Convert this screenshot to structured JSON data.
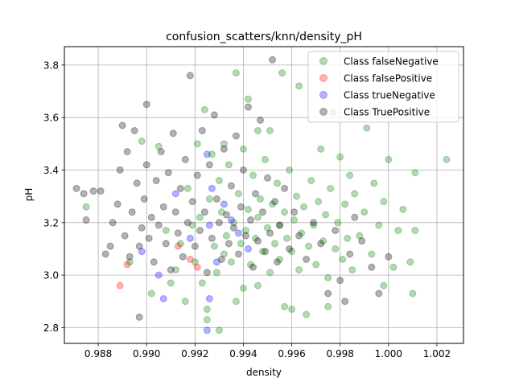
{
  "chart_data": {
    "type": "scatter",
    "title": "confusion_scatters/knn/density_pH",
    "xlabel": "density",
    "ylabel": "pH",
    "xlim": [
      0.9866,
      1.0031
    ],
    "ylim": [
      2.74,
      3.87
    ],
    "xticks": [
      "0.988",
      "0.990",
      "0.992",
      "0.994",
      "0.996",
      "0.998",
      "1.000",
      "1.002"
    ],
    "yticks": [
      "2.8",
      "3.0",
      "3.2",
      "3.4",
      "3.6",
      "3.8"
    ],
    "grid": true,
    "legend_position": "top-right",
    "series": [
      {
        "name": "Class falseNegative",
        "color": "#008000",
        "points": [
          [
            0.9875,
            3.26
          ],
          [
            0.9893,
            3.05
          ],
          [
            0.9898,
            3.51
          ],
          [
            0.9902,
            2.93
          ],
          [
            0.9905,
            3.49
          ],
          [
            0.9908,
            3.17
          ],
          [
            0.991,
            2.97
          ],
          [
            0.9912,
            3.02
          ],
          [
            0.9914,
            3.12
          ],
          [
            0.9916,
            2.9
          ],
          [
            0.9917,
            3.33
          ],
          [
            0.9919,
            3.19
          ],
          [
            0.992,
            3.05
          ],
          [
            0.9921,
            3.5
          ],
          [
            0.9922,
            3.22
          ],
          [
            0.9923,
            2.97
          ],
          [
            0.9924,
            3.63
          ],
          [
            0.9925,
            2.87
          ],
          [
            0.9926,
            3.29
          ],
          [
            0.9927,
            3.46
          ],
          [
            0.9928,
            3.11
          ],
          [
            0.9929,
            3.01
          ],
          [
            0.993,
            3.36
          ],
          [
            0.993,
            2.79
          ],
          [
            0.9931,
            3.24
          ],
          [
            0.9932,
            3.08
          ],
          [
            0.9933,
            3.15
          ],
          [
            0.9934,
            3.42
          ],
          [
            0.9935,
            3.05
          ],
          [
            0.9936,
            3.2
          ],
          [
            0.9937,
            2.9
          ],
          [
            0.9937,
            3.77
          ],
          [
            0.9938,
            3.31
          ],
          [
            0.9939,
            3.12
          ],
          [
            0.994,
            2.95
          ],
          [
            0.994,
            3.48
          ],
          [
            0.9941,
            3.17
          ],
          [
            0.9942,
            3.25
          ],
          [
            0.9942,
            3.67
          ],
          [
            0.9943,
            3.04
          ],
          [
            0.9944,
            3.38
          ],
          [
            0.9945,
            3.14
          ],
          [
            0.9946,
            3.22
          ],
          [
            0.9946,
            2.96
          ],
          [
            0.9947,
            3.29
          ],
          [
            0.9948,
            3.09
          ],
          [
            0.9949,
            3.44
          ],
          [
            0.995,
            3.18
          ],
          [
            0.9951,
            3.01
          ],
          [
            0.9951,
            3.55
          ],
          [
            0.9952,
            3.27
          ],
          [
            0.9953,
            3.12
          ],
          [
            0.9954,
            3.35
          ],
          [
            0.9955,
            3.06
          ],
          [
            0.9955,
            3.19
          ],
          [
            0.9956,
            3.77
          ],
          [
            0.9957,
            3.24
          ],
          [
            0.9957,
            2.88
          ],
          [
            0.9958,
            3.14
          ],
          [
            0.9959,
            3.4
          ],
          [
            0.996,
            3.09
          ],
          [
            0.9961,
            3.21
          ],
          [
            0.9962,
            3.3
          ],
          [
            0.9963,
            3.02
          ],
          [
            0.9963,
            3.72
          ],
          [
            0.9964,
            3.16
          ],
          [
            0.9965,
            3.26
          ],
          [
            0.9966,
            2.85
          ],
          [
            0.9967,
            3.11
          ],
          [
            0.9968,
            3.36
          ],
          [
            0.9969,
            3.19
          ],
          [
            0.997,
            3.04
          ],
          [
            0.9971,
            3.28
          ],
          [
            0.9972,
            3.48
          ],
          [
            0.9973,
            3.13
          ],
          [
            0.9974,
            3.23
          ],
          [
            0.9975,
            2.99
          ],
          [
            0.9976,
            3.33
          ],
          [
            0.9977,
            3.62
          ],
          [
            0.9978,
            3.1
          ],
          [
            0.9979,
            3.2
          ],
          [
            0.998,
            3.45
          ],
          [
            0.9981,
            3.06
          ],
          [
            0.9982,
            3.27
          ],
          [
            0.9983,
            3.14
          ],
          [
            0.9984,
            3.38
          ],
          [
            0.9985,
            3.02
          ],
          [
            0.9986,
            3.31
          ],
          [
            0.9988,
            3.15
          ],
          [
            0.999,
            3.24
          ],
          [
            0.9991,
            3.56
          ],
          [
            0.9993,
            3.08
          ],
          [
            0.9994,
            3.35
          ],
          [
            0.9996,
            3.19
          ],
          [
            0.9998,
            3.28
          ],
          [
            1.0,
            3.44
          ],
          [
            1.0002,
            3.03
          ],
          [
            1.0004,
            3.17
          ],
          [
            1.0006,
            3.25
          ],
          [
            1.0009,
            3.05
          ],
          [
            1.0011,
            3.39
          ],
          [
            1.0011,
            3.17
          ],
          [
            1.0024,
            3.44
          ],
          [
            1.001,
            2.93
          ],
          [
            0.9998,
            2.96
          ],
          [
            0.9975,
            2.88
          ],
          [
            0.996,
            2.87
          ],
          [
            0.9925,
            2.83
          ],
          [
            0.9932,
            3.5
          ],
          [
            0.9946,
            3.55
          ]
        ]
      },
      {
        "name": "Class falsePositive",
        "color": "#ff0000",
        "points": [
          [
            0.9889,
            2.96
          ],
          [
            0.9892,
            3.04
          ],
          [
            0.9913,
            3.11
          ],
          [
            0.9918,
            3.06
          ],
          [
            0.9921,
            3.03
          ]
        ]
      },
      {
        "name": "Class trueNegative",
        "color": "#0000ff",
        "points": [
          [
            0.9898,
            3.09
          ],
          [
            0.9905,
            3.0
          ],
          [
            0.9907,
            2.91
          ],
          [
            0.9912,
            3.31
          ],
          [
            0.9918,
            3.14
          ],
          [
            0.9925,
            3.46
          ],
          [
            0.9926,
            3.19
          ],
          [
            0.9927,
            3.33
          ],
          [
            0.9926,
            2.91
          ],
          [
            0.9925,
            2.79
          ],
          [
            0.9929,
            3.05
          ],
          [
            0.9932,
            3.27
          ],
          [
            0.9935,
            3.21
          ],
          [
            0.9938,
            3.16
          ],
          [
            0.9942,
            3.1
          ]
        ]
      },
      {
        "name": "Class TruePositive",
        "color": "#000000",
        "points": [
          [
            0.9871,
            3.33
          ],
          [
            0.9874,
            3.31
          ],
          [
            0.9875,
            3.21
          ],
          [
            0.9878,
            3.32
          ],
          [
            0.9881,
            3.32
          ],
          [
            0.9883,
            3.08
          ],
          [
            0.9885,
            3.11
          ],
          [
            0.9886,
            3.2
          ],
          [
            0.9888,
            3.27
          ],
          [
            0.9889,
            3.4
          ],
          [
            0.989,
            3.57
          ],
          [
            0.9891,
            3.15
          ],
          [
            0.9892,
            3.47
          ],
          [
            0.9893,
            3.07
          ],
          [
            0.9894,
            3.24
          ],
          [
            0.9895,
            3.55
          ],
          [
            0.9896,
            3.35
          ],
          [
            0.9897,
            3.11
          ],
          [
            0.9897,
            2.84
          ],
          [
            0.9898,
            3.18
          ],
          [
            0.9899,
            3.29
          ],
          [
            0.99,
            3.42
          ],
          [
            0.99,
            3.65
          ],
          [
            0.9901,
            3.14
          ],
          [
            0.9902,
            3.22
          ],
          [
            0.9903,
            3.05
          ],
          [
            0.9904,
            3.36
          ],
          [
            0.9905,
            3.19
          ],
          [
            0.9906,
            3.47
          ],
          [
            0.9907,
            3.26
          ],
          [
            0.9908,
            3.12
          ],
          [
            0.9909,
            3.39
          ],
          [
            0.991,
            3.02
          ],
          [
            0.9911,
            3.54
          ],
          [
            0.9912,
            3.24
          ],
          [
            0.9913,
            3.16
          ],
          [
            0.9914,
            3.33
          ],
          [
            0.9915,
            3.07
          ],
          [
            0.9916,
            3.44
          ],
          [
            0.9917,
            3.2
          ],
          [
            0.9918,
            3.76
          ],
          [
            0.9919,
            3.28
          ],
          [
            0.992,
            3.11
          ],
          [
            0.9921,
            3.38
          ],
          [
            0.9922,
            3.17
          ],
          [
            0.9923,
            3.55
          ],
          [
            0.9924,
            3.24
          ],
          [
            0.9925,
            3.01
          ],
          [
            0.9926,
            3.42
          ],
          [
            0.9927,
            3.14
          ],
          [
            0.9928,
            3.61
          ],
          [
            0.9929,
            3.29
          ],
          [
            0.993,
            3.2
          ],
          [
            0.9931,
            3.06
          ],
          [
            0.9932,
            3.48
          ],
          [
            0.9933,
            3.23
          ],
          [
            0.9934,
            3.12
          ],
          [
            0.9935,
            3.34
          ],
          [
            0.9936,
            3.18
          ],
          [
            0.9937,
            3.53
          ],
          [
            0.9938,
            3.08
          ],
          [
            0.9939,
            3.26
          ],
          [
            0.994,
            3.4
          ],
          [
            0.9941,
            3.15
          ],
          [
            0.9942,
            3.64
          ],
          [
            0.9943,
            3.21
          ],
          [
            0.9944,
            3.03
          ],
          [
            0.9945,
            3.31
          ],
          [
            0.9946,
            3.13
          ],
          [
            0.9947,
            3.59
          ],
          [
            0.9948,
            3.24
          ],
          [
            0.9949,
            3.09
          ],
          [
            0.995,
            3.37
          ],
          [
            0.9951,
            3.16
          ],
          [
            0.9952,
            3.82
          ],
          [
            0.9953,
            3.28
          ],
          [
            0.9954,
            3.05
          ],
          [
            0.9955,
            3.19
          ],
          [
            0.9957,
            3.33
          ],
          [
            0.9959,
            3.1
          ],
          [
            0.9961,
            3.24
          ],
          [
            0.9963,
            3.15
          ],
          [
            0.9966,
            3.06
          ],
          [
            0.9969,
            3.2
          ],
          [
            0.9972,
            3.12
          ],
          [
            0.9975,
            2.93
          ],
          [
            0.9978,
            3.17
          ],
          [
            0.998,
            2.98
          ],
          [
            0.9982,
            2.9
          ],
          [
            0.9984,
            3.08
          ],
          [
            0.9986,
            3.22
          ],
          [
            0.9989,
            3.13
          ],
          [
            0.9993,
            3.03
          ],
          [
            0.9996,
            2.93
          ],
          [
            1.0,
            3.07
          ]
        ]
      }
    ]
  }
}
